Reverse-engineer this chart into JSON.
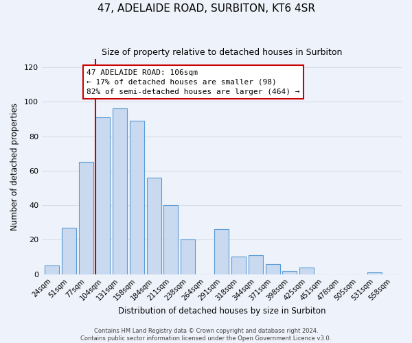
{
  "title": "47, ADELAIDE ROAD, SURBITON, KT6 4SR",
  "subtitle": "Size of property relative to detached houses in Surbiton",
  "xlabel": "Distribution of detached houses by size in Surbiton",
  "ylabel": "Number of detached properties",
  "categories": [
    "24sqm",
    "51sqm",
    "77sqm",
    "104sqm",
    "131sqm",
    "158sqm",
    "184sqm",
    "211sqm",
    "238sqm",
    "264sqm",
    "291sqm",
    "318sqm",
    "344sqm",
    "371sqm",
    "398sqm",
    "425sqm",
    "451sqm",
    "478sqm",
    "505sqm",
    "531sqm",
    "558sqm"
  ],
  "values": [
    5,
    27,
    65,
    91,
    96,
    89,
    56,
    40,
    20,
    0,
    26,
    10,
    11,
    6,
    2,
    4,
    0,
    0,
    0,
    1,
    0
  ],
  "bar_color": "#c9d9f0",
  "bar_edge_color": "#5b9bd5",
  "vline_index": 3,
  "vline_color": "#cc0000",
  "annotation_line1": "47 ADELAIDE ROAD: 106sqm",
  "annotation_line2": "← 17% of detached houses are smaller (98)",
  "annotation_line3": "82% of semi-detached houses are larger (464) →",
  "annotation_box_color": "#ffffff",
  "annotation_box_edge_color": "#cc0000",
  "ylim": [
    0,
    125
  ],
  "yticks": [
    0,
    20,
    40,
    60,
    80,
    100,
    120
  ],
  "footer_text": "Contains HM Land Registry data © Crown copyright and database right 2024.\nContains public sector information licensed under the Open Government Licence v3.0.",
  "bg_color": "#eef2fa",
  "grid_color": "#d8dde8",
  "title_fontsize": 11,
  "subtitle_fontsize": 9
}
